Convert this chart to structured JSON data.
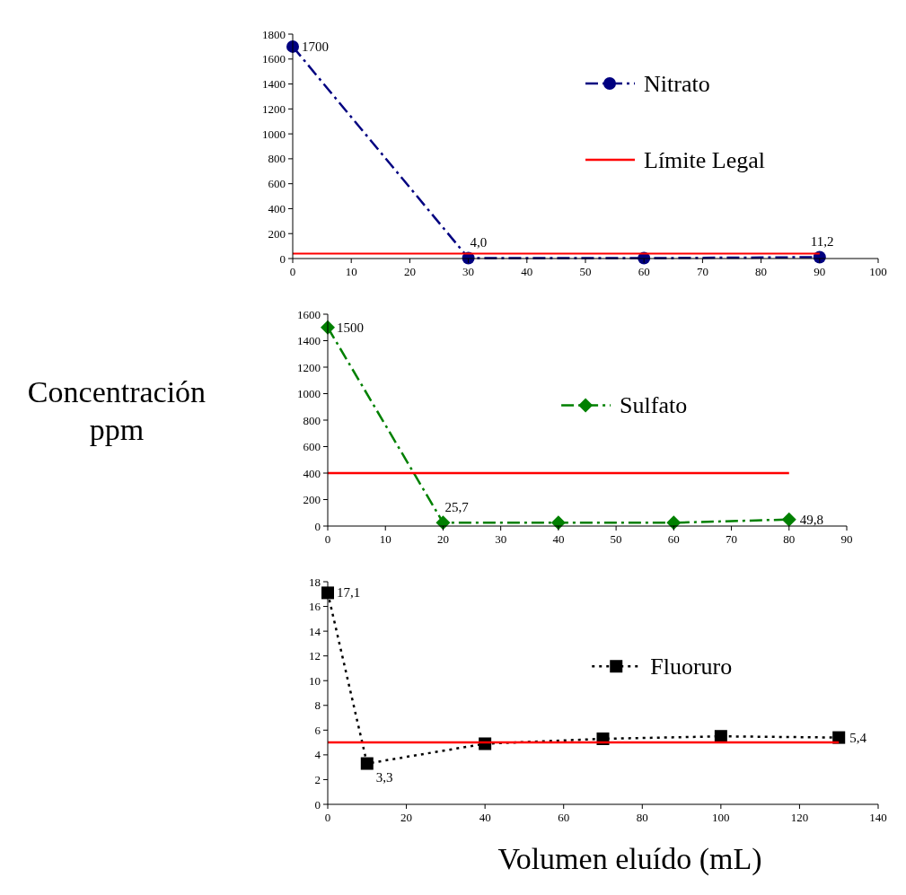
{
  "chart_data": [
    {
      "type": "line",
      "xlim": [
        0,
        100
      ],
      "xticks": [
        0,
        10,
        20,
        30,
        40,
        50,
        60,
        70,
        80,
        90,
        100
      ],
      "ylim": [
        0,
        1800
      ],
      "yticks": [
        0,
        200,
        400,
        600,
        800,
        1000,
        1200,
        1400,
        1600,
        1800
      ],
      "legend": "right",
      "series": [
        {
          "name": "Nitrato",
          "color": "#000080",
          "x": [
            0,
            30,
            60,
            90
          ],
          "values": [
            1700,
            4.0,
            3,
            11.2
          ],
          "value_labels": [
            "1700",
            "4,0",
            null,
            "11,2"
          ],
          "marker": "circle",
          "line_style": "dashed"
        },
        {
          "name": "Límite Legal",
          "color": "#ff0000",
          "x": [
            0,
            90
          ],
          "values": [
            40,
            40
          ],
          "marker": "none",
          "line_style": "solid"
        }
      ]
    },
    {
      "type": "line",
      "ylabel": "Concentración ppm",
      "xlim": [
        0,
        90
      ],
      "xticks": [
        0,
        10,
        20,
        30,
        40,
        50,
        60,
        70,
        80,
        90
      ],
      "ylim": [
        0,
        1600
      ],
      "yticks": [
        0,
        200,
        400,
        600,
        800,
        1000,
        1200,
        1400,
        1600
      ],
      "legend": "right",
      "series": [
        {
          "name": "Sulfato",
          "color": "#008000",
          "x": [
            0,
            20,
            40,
            60,
            80
          ],
          "values": [
            1500,
            25.7,
            25,
            25,
            49.8
          ],
          "value_labels": [
            "1500",
            "25,7",
            null,
            null,
            "49,8"
          ],
          "marker": "diamond",
          "line_style": "dashed"
        },
        {
          "color": "#ff0000",
          "x": [
            0,
            80
          ],
          "values": [
            400,
            400
          ],
          "marker": "none",
          "line_style": "solid"
        }
      ]
    },
    {
      "type": "line",
      "xlabel": "Volumen eluído (mL)",
      "xlim": [
        0,
        140
      ],
      "xticks": [
        0,
        20,
        40,
        60,
        80,
        100,
        120,
        140
      ],
      "ylim": [
        0,
        18
      ],
      "yticks": [
        0,
        2,
        4,
        6,
        8,
        10,
        12,
        14,
        16,
        18
      ],
      "legend": "right",
      "series": [
        {
          "name": "Fluoruro",
          "color": "#000000",
          "x": [
            0,
            10,
            40,
            70,
            100,
            130
          ],
          "values": [
            17.1,
            3.3,
            4.9,
            5.3,
            5.5,
            5.4
          ],
          "value_labels": [
            "17,1",
            "3,3",
            null,
            null,
            null,
            "5,4"
          ],
          "marker": "square",
          "line_style": "dotted"
        },
        {
          "color": "#ff0000",
          "x": [
            0,
            130
          ],
          "values": [
            5,
            5
          ],
          "marker": "none",
          "line_style": "solid"
        }
      ]
    }
  ]
}
